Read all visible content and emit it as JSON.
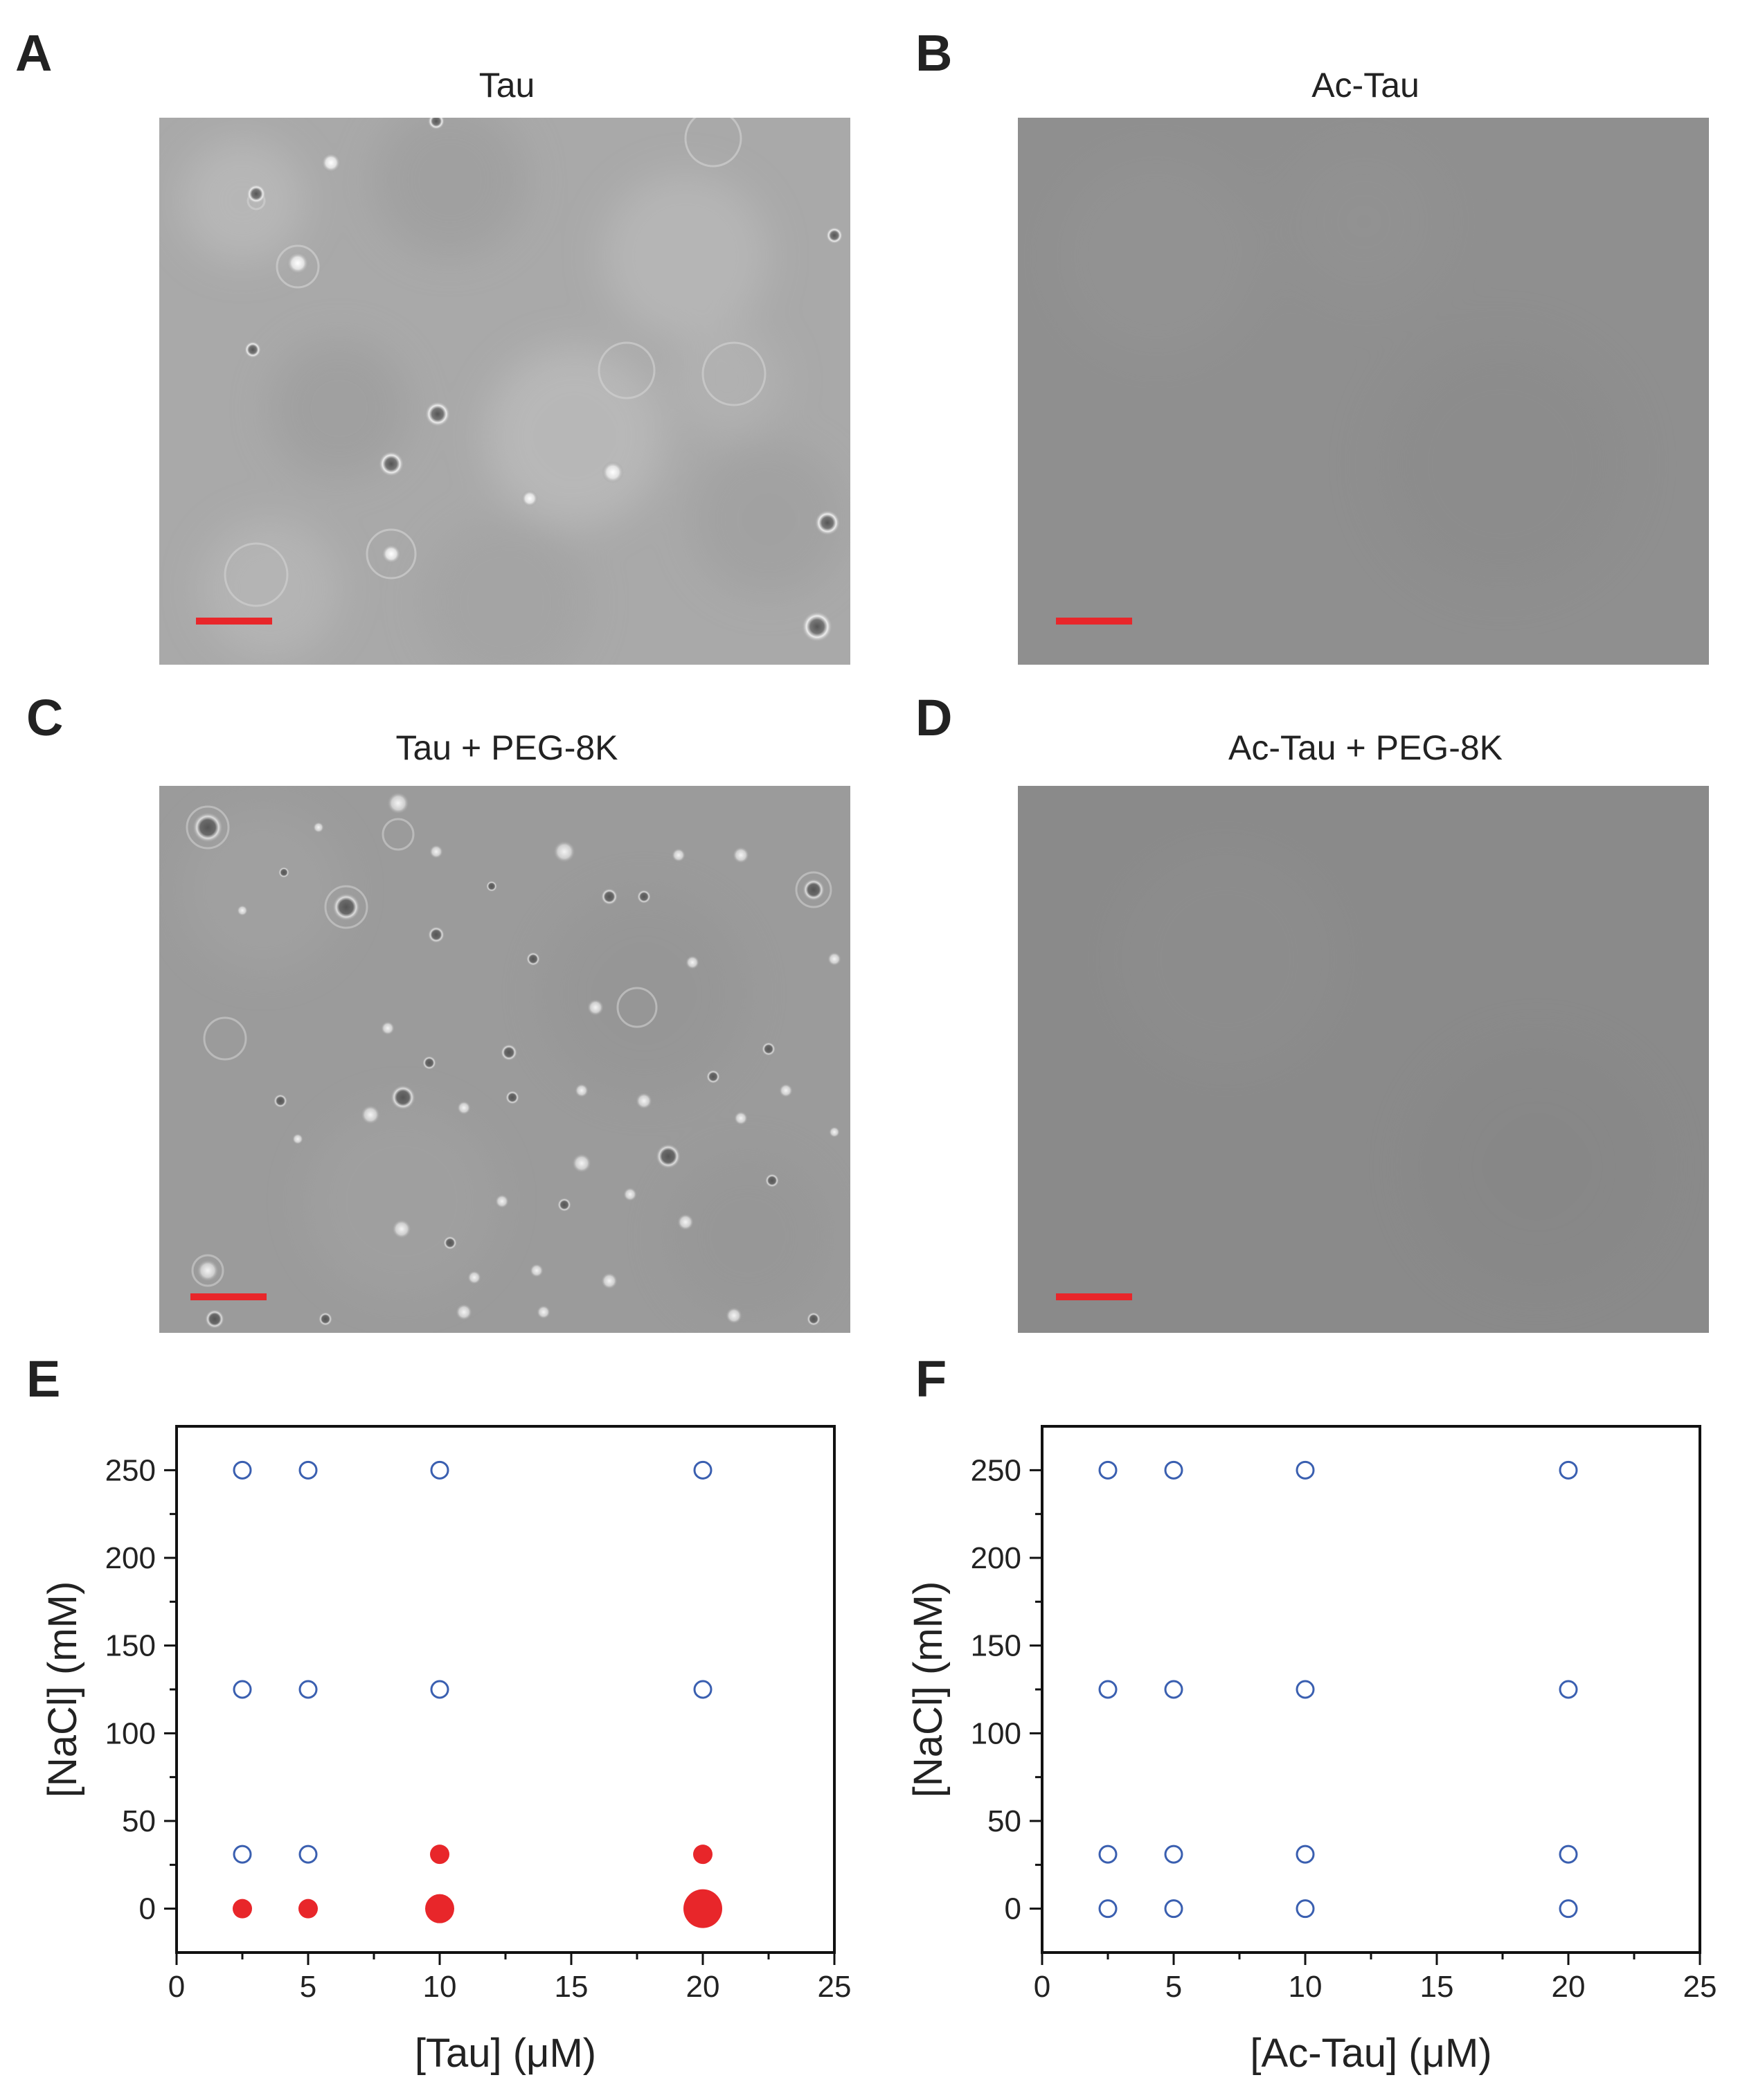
{
  "panels": {
    "A": {
      "letter": "A",
      "title": "Tau"
    },
    "B": {
      "letter": "B",
      "title": "Ac-Tau"
    },
    "C": {
      "letter": "C",
      "title": "Tau + PEG-8K"
    },
    "D": {
      "letter": "D",
      "title": "Ac-Tau + PEG-8K"
    },
    "E": {
      "letter": "E"
    },
    "F": {
      "letter": "F"
    }
  },
  "colors": {
    "open_marker": "#3a5fb0",
    "filled_marker": "#e8262a",
    "scale_bar": "#e8262a",
    "micrograph_a": "#a8a8a8",
    "micrograph_b": "#8e8e8e",
    "micrograph_c": "#9a9a9a",
    "micrograph_d": "#8a8a8a"
  },
  "chart_data": [
    {
      "panel": "E",
      "type": "scatter",
      "xlabel": "[Tau] (μM)",
      "ylabel": "[NaCl] (mM)",
      "xlim": [
        0,
        25
      ],
      "ylim": [
        -25,
        275
      ],
      "xticks": [
        0,
        5,
        10,
        15,
        20,
        25
      ],
      "yticks": [
        0,
        50,
        100,
        150,
        200,
        250
      ],
      "grid": false,
      "points": [
        {
          "x": 2.5,
          "y": 250,
          "phase": "open",
          "size": 1
        },
        {
          "x": 5,
          "y": 250,
          "phase": "open",
          "size": 1
        },
        {
          "x": 10,
          "y": 250,
          "phase": "open",
          "size": 1
        },
        {
          "x": 20,
          "y": 250,
          "phase": "open",
          "size": 1
        },
        {
          "x": 2.5,
          "y": 125,
          "phase": "open",
          "size": 1
        },
        {
          "x": 5,
          "y": 125,
          "phase": "open",
          "size": 1
        },
        {
          "x": 10,
          "y": 125,
          "phase": "open",
          "size": 1
        },
        {
          "x": 20,
          "y": 125,
          "phase": "open",
          "size": 1
        },
        {
          "x": 2.5,
          "y": 31,
          "phase": "open",
          "size": 1
        },
        {
          "x": 5,
          "y": 31,
          "phase": "open",
          "size": 1
        },
        {
          "x": 10,
          "y": 31,
          "phase": "filled",
          "size": 1
        },
        {
          "x": 20,
          "y": 31,
          "phase": "filled",
          "size": 1
        },
        {
          "x": 2.5,
          "y": 0,
          "phase": "filled",
          "size": 1
        },
        {
          "x": 5,
          "y": 0,
          "phase": "filled",
          "size": 1
        },
        {
          "x": 10,
          "y": 0,
          "phase": "filled",
          "size": 1.5
        },
        {
          "x": 20,
          "y": 0,
          "phase": "filled",
          "size": 2
        }
      ]
    },
    {
      "panel": "F",
      "type": "scatter",
      "xlabel": "[Ac-Tau] (μM)",
      "ylabel": "[NaCl] (mM)",
      "xlim": [
        0,
        25
      ],
      "ylim": [
        -25,
        275
      ],
      "xticks": [
        0,
        5,
        10,
        15,
        20,
        25
      ],
      "yticks": [
        0,
        50,
        100,
        150,
        200,
        250
      ],
      "grid": false,
      "points": [
        {
          "x": 2.5,
          "y": 250,
          "phase": "open",
          "size": 1
        },
        {
          "x": 5,
          "y": 250,
          "phase": "open",
          "size": 1
        },
        {
          "x": 10,
          "y": 250,
          "phase": "open",
          "size": 1
        },
        {
          "x": 20,
          "y": 250,
          "phase": "open",
          "size": 1
        },
        {
          "x": 2.5,
          "y": 125,
          "phase": "open",
          "size": 1
        },
        {
          "x": 5,
          "y": 125,
          "phase": "open",
          "size": 1
        },
        {
          "x": 10,
          "y": 125,
          "phase": "open",
          "size": 1
        },
        {
          "x": 20,
          "y": 125,
          "phase": "open",
          "size": 1
        },
        {
          "x": 2.5,
          "y": 31,
          "phase": "open",
          "size": 1
        },
        {
          "x": 5,
          "y": 31,
          "phase": "open",
          "size": 1
        },
        {
          "x": 10,
          "y": 31,
          "phase": "open",
          "size": 1
        },
        {
          "x": 20,
          "y": 31,
          "phase": "open",
          "size": 1
        },
        {
          "x": 2.5,
          "y": 0,
          "phase": "open",
          "size": 1
        },
        {
          "x": 5,
          "y": 0,
          "phase": "open",
          "size": 1
        },
        {
          "x": 10,
          "y": 0,
          "phase": "open",
          "size": 1
        },
        {
          "x": 20,
          "y": 0,
          "phase": "open",
          "size": 1
        }
      ]
    }
  ]
}
